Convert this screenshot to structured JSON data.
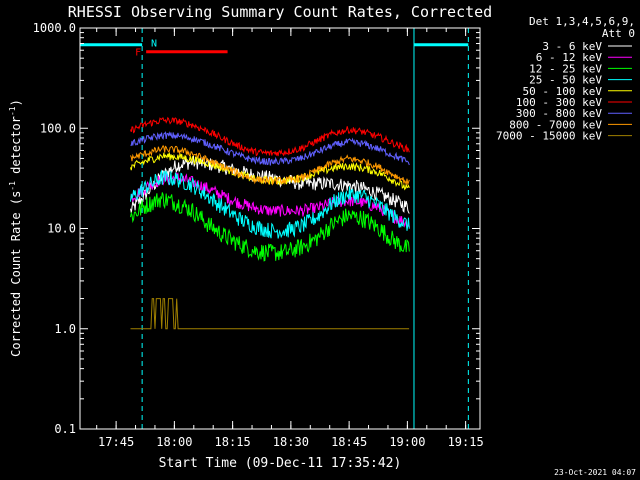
{
  "chart_data": {
    "type": "line",
    "title": "RHESSI Observing Summary Count Rates, Corrected",
    "xlabel": "Start Time (09-Dec-11 17:35:42)",
    "ylabel_main": "Corrected Count Rate (s",
    "ylabel_sup1": "-1",
    "ylabel_mid": " detector",
    "ylabel_sup2": "-1",
    "ylabel_end": ")",
    "xlim_minutes": [
      0,
      103
    ],
    "ylim": [
      0.1,
      1000
    ],
    "log_y": true,
    "grid": false,
    "legend_position": "top-right",
    "legend_header": [
      "Det 1,3,4,5,6,9,",
      "Att 0"
    ],
    "x_ticks": [
      {
        "label": "17:45",
        "minutes": 9.3
      },
      {
        "label": "18:00",
        "minutes": 24.3
      },
      {
        "label": "18:15",
        "minutes": 39.3
      },
      {
        "label": "18:30",
        "minutes": 54.3
      },
      {
        "label": "18:45",
        "minutes": 69.3
      },
      {
        "label": "19:00",
        "minutes": 84.3
      },
      {
        "label": "19:15",
        "minutes": 99.3
      }
    ],
    "y_ticks": [
      {
        "label": "0.1",
        "value": 0.1
      },
      {
        "label": "1.0",
        "value": 1
      },
      {
        "label": "10.0",
        "value": 10
      },
      {
        "label": "100.0",
        "value": 100
      },
      {
        "label": "1000.0",
        "value": 1000
      }
    ],
    "series_time_minutes": [
      13,
      17,
      21,
      25,
      29,
      33,
      37,
      41,
      45,
      49,
      53,
      57,
      61,
      65,
      69,
      73,
      77,
      81,
      85
    ],
    "series": [
      {
        "name": "3 - 6 keV",
        "color": "#ffffff",
        "noise": 0.07,
        "values": [
          15,
          22,
          33,
          43,
          46,
          44,
          41,
          37,
          34,
          32,
          30,
          28,
          28,
          28,
          27,
          25,
          22,
          19,
          16
        ]
      },
      {
        "name": "6 - 12 keV",
        "color": "#ff00ff",
        "noise": 0.06,
        "values": [
          20,
          26,
          31,
          32,
          29,
          25,
          21,
          18,
          16,
          15,
          15,
          15,
          16,
          18,
          19,
          18,
          16,
          13,
          11
        ]
      },
      {
        "name": "12 - 25 keV",
        "color": "#00ff00",
        "noise": 0.09,
        "values": [
          13,
          17,
          20,
          18,
          15,
          11,
          8.5,
          7,
          6,
          5.7,
          5.8,
          6.5,
          8,
          11,
          13.5,
          12.5,
          10,
          7.5,
          6
        ]
      },
      {
        "name": "25 - 50 keV",
        "color": "#00ffff",
        "noise": 0.08,
        "values": [
          20,
          26,
          32,
          31,
          27,
          21,
          16,
          12.5,
          10.5,
          9.5,
          9.5,
          10.5,
          13,
          18,
          22,
          21,
          17,
          13,
          10.5
        ]
      },
      {
        "name": "50 - 100 keV",
        "color": "#ffff00",
        "noise": 0.04,
        "values": [
          41,
          47,
          53,
          52,
          49,
          45,
          40,
          35,
          31,
          30,
          30,
          32,
          36,
          40,
          42,
          40,
          36,
          30,
          24
        ]
      },
      {
        "name": "100 - 300 keV",
        "color": "#ff0000",
        "noise": 0.035,
        "values": [
          95,
          110,
          120,
          118,
          108,
          93,
          78,
          66,
          58,
          56,
          58,
          63,
          75,
          88,
          97,
          92,
          82,
          70,
          60
        ]
      },
      {
        "name": "300 - 800 keV",
        "color": "#6060ff",
        "noise": 0.035,
        "values": [
          70,
          78,
          85,
          84,
          79,
          70,
          61,
          53,
          48,
          46,
          47,
          50,
          58,
          67,
          73,
          70,
          62,
          53,
          45
        ]
      },
      {
        "name": "800 - 7000 keV",
        "color": "#ff9900",
        "noise": 0.035,
        "values": [
          50,
          56,
          62,
          61,
          56,
          48,
          41,
          35,
          31,
          30,
          30,
          32,
          38,
          45,
          50,
          47,
          41,
          34,
          28
        ]
      },
      {
        "name": "7000 - 15000 keV",
        "color": "#a08000",
        "noise": 0,
        "values": [
          1,
          2,
          2,
          1,
          1,
          1,
          1,
          1,
          1,
          1,
          1,
          1,
          1,
          1,
          1,
          1,
          1,
          1,
          1
        ]
      }
    ],
    "flag_markers": [
      {
        "label": "F",
        "color": "#ff0000",
        "start_minutes": 16,
        "end_minutes": 38,
        "value": 580
      },
      {
        "label": "N",
        "color": "#00ffff",
        "start_minutes": 17,
        "end_minutes": 17,
        "value": 720
      }
    ],
    "night_intervals_minutes": [
      [
        0,
        16
      ],
      [
        86,
        100
      ]
    ],
    "night_level": 680,
    "saa_marker_minutes": [
      0,
      16,
      86,
      100
    ],
    "timestamp": "23-Oct-2021 04:07"
  }
}
